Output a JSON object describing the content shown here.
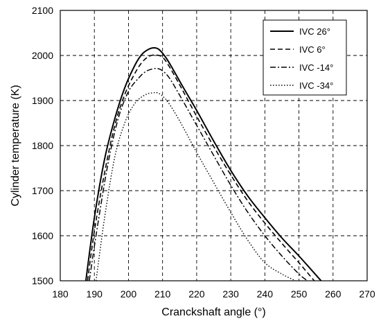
{
  "chart_data": {
    "type": "line",
    "title": "",
    "xlabel": "Cranckshaft angle (°)",
    "ylabel": "Cylinder temperature (K)",
    "xlim": [
      180,
      270
    ],
    "ylim": [
      1500,
      2100
    ],
    "xticks": [
      180,
      190,
      200,
      210,
      220,
      230,
      240,
      250,
      260,
      270
    ],
    "yticks": [
      1500,
      1600,
      1700,
      1800,
      1900,
      2000,
      2100
    ],
    "grid": true,
    "legend_position": "top-right",
    "series": [
      {
        "name": "IVC 26°",
        "dash": "solid",
        "width": 2,
        "x": [
          187.5,
          190,
          193,
          196,
          199,
          202,
          204,
          206,
          207.5,
          209,
          211,
          213,
          216,
          220,
          225,
          230,
          235,
          240,
          245,
          250,
          256.5
        ],
        "y": [
          1500,
          1640,
          1770,
          1860,
          1930,
          1980,
          2003,
          2014,
          2017,
          2013,
          1995,
          1970,
          1930,
          1878,
          1810,
          1745,
          1688,
          1640,
          1595,
          1555,
          1500
        ]
      },
      {
        "name": "IVC 6°",
        "dash": "dashed",
        "width": 1.6,
        "x": [
          188,
          190,
          193,
          196,
          199,
          202,
          204,
          206,
          208,
          210,
          212,
          215,
          220,
          225,
          230,
          235,
          240,
          245,
          250,
          254.5
        ],
        "y": [
          1500,
          1610,
          1740,
          1845,
          1915,
          1962,
          1985,
          1998,
          2001,
          1996,
          1975,
          1935,
          1865,
          1798,
          1735,
          1677,
          1628,
          1583,
          1540,
          1500
        ]
      },
      {
        "name": "IVC -14°",
        "dash": "dash-dot",
        "width": 1.5,
        "x": [
          188.5,
          191,
          194,
          197,
          200,
          203,
          205,
          207,
          208.5,
          210,
          212,
          215,
          220,
          225,
          230,
          235,
          240,
          245,
          250,
          252.5
        ],
        "y": [
          1500,
          1625,
          1760,
          1860,
          1920,
          1950,
          1964,
          1970,
          1971,
          1966,
          1950,
          1912,
          1845,
          1778,
          1712,
          1652,
          1600,
          1555,
          1515,
          1500
        ]
      },
      {
        "name": "IVC -34°",
        "dash": "dotted",
        "width": 1.4,
        "x": [
          190.5,
          193,
          196,
          199,
          202,
          205,
          207,
          208.5,
          210,
          212,
          215,
          220,
          225,
          230,
          235,
          240,
          245,
          249
        ],
        "y": [
          1500,
          1640,
          1775,
          1852,
          1895,
          1913,
          1917,
          1917,
          1910,
          1892,
          1855,
          1785,
          1718,
          1652,
          1590,
          1540,
          1515,
          1500
        ]
      }
    ]
  }
}
